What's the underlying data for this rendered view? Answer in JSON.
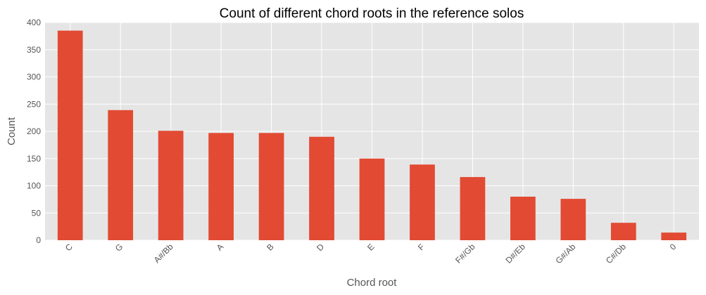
{
  "chart_data": {
    "type": "bar",
    "title": "Count of different chord roots in the reference solos",
    "xlabel": "Chord root",
    "ylabel": "Count",
    "categories": [
      "C",
      "G",
      "A#/Bb",
      "A",
      "B",
      "D",
      "E",
      "F",
      "F#/Gb",
      "D#/Eb",
      "G#/Ab",
      "C#/Db",
      "0"
    ],
    "values": [
      385,
      239,
      201,
      197,
      197,
      190,
      150,
      139,
      116,
      80,
      76,
      32,
      14
    ],
    "ylim": [
      0,
      400
    ],
    "yticks": [
      0,
      50,
      100,
      150,
      200,
      250,
      300,
      350,
      400
    ],
    "grid": true,
    "legend": "none",
    "colors": {
      "bar": "#e24a33",
      "plot_background": "#e5e5e5",
      "grid": "#ffffff"
    }
  }
}
